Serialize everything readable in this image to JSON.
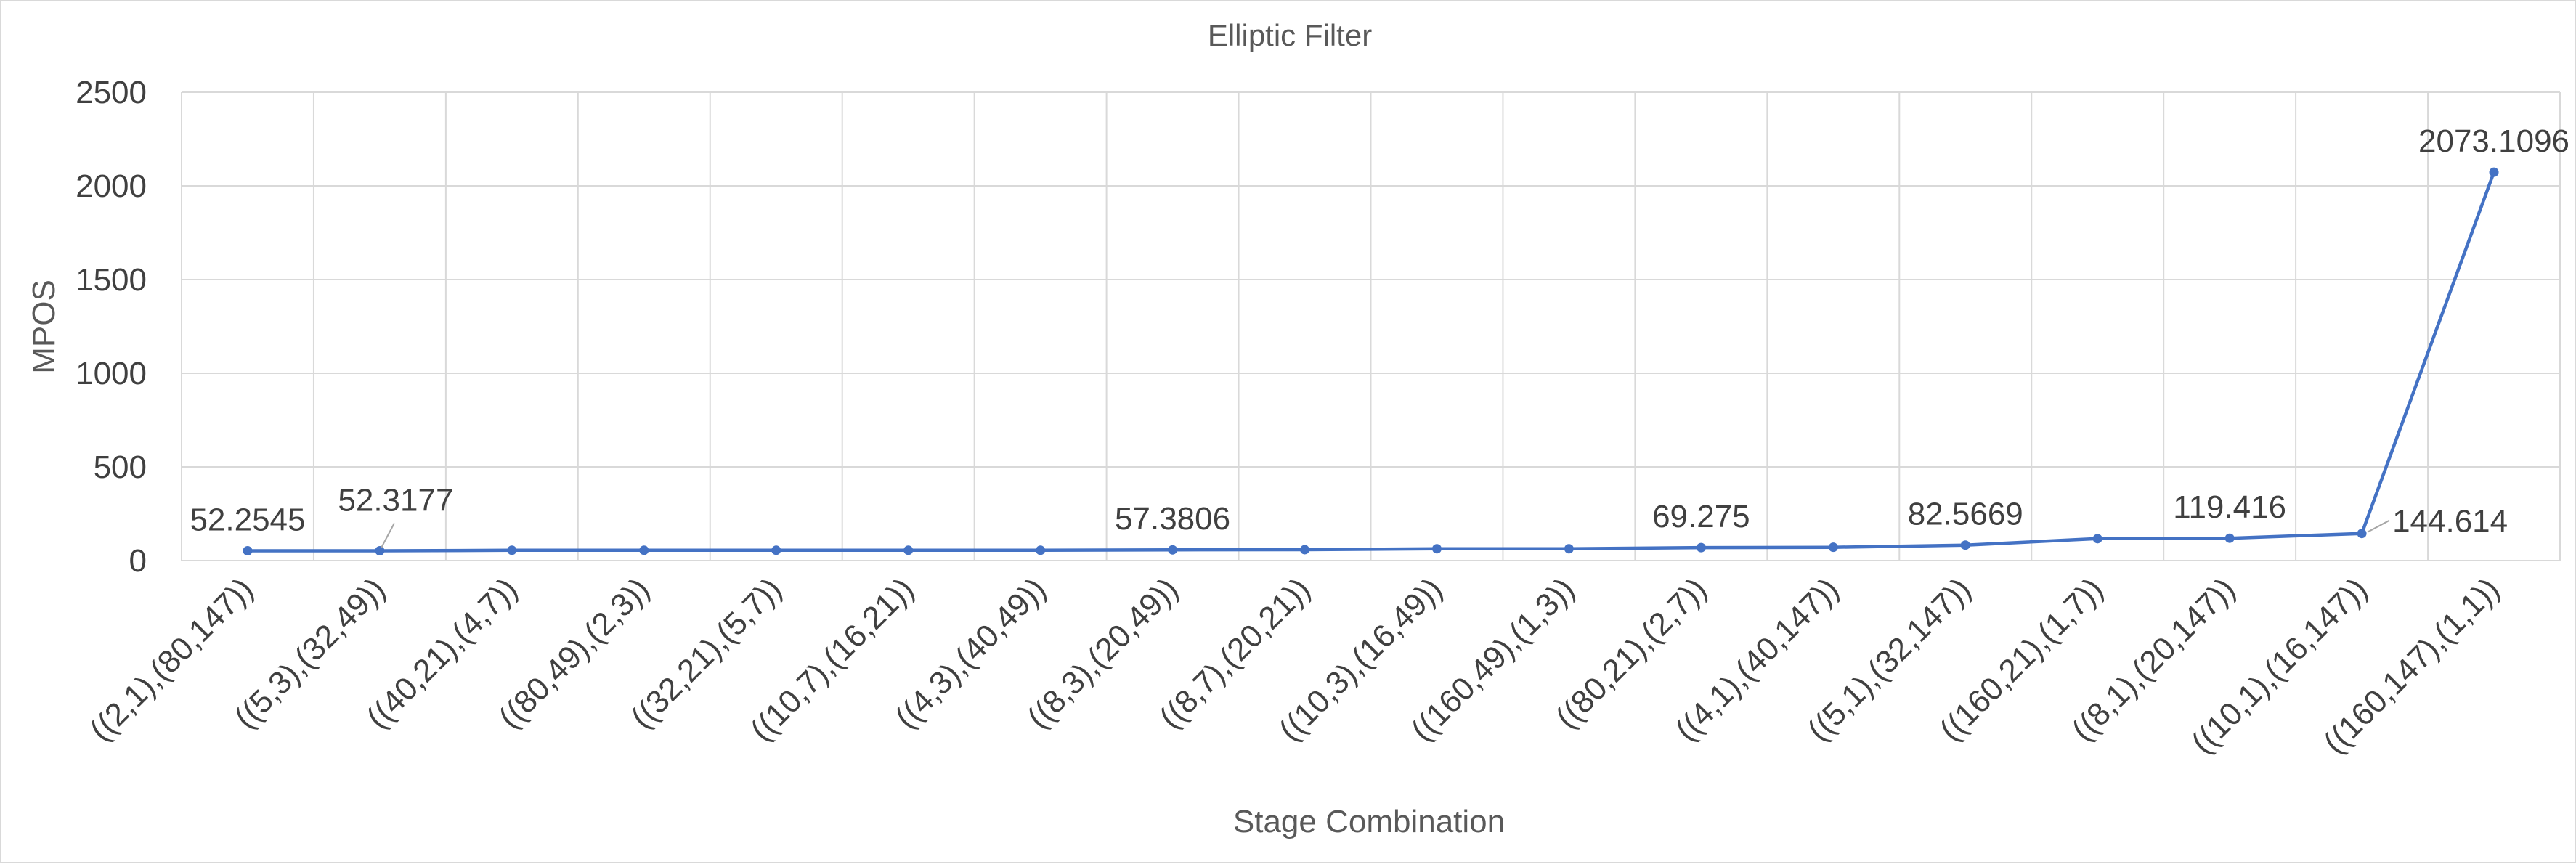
{
  "chart_data": {
    "type": "line",
    "title": "Elliptic Filter",
    "xlabel": "Stage Combination",
    "ylabel": "MPOS",
    "ylim": [
      0,
      2500
    ],
    "yticks": [
      0,
      500,
      1000,
      1500,
      2000,
      2500
    ],
    "grid": true,
    "legend": "none",
    "categories": [
      "((2,1),(80,147))",
      "((5,3),(32,49))",
      "((40,21),(4,7))",
      "((80,49),(2,3))",
      "((32,21),(5,7))",
      "((10,7),(16,21))",
      "((4,3),(40,49))",
      "((8,3),(20,49))",
      "((8,7),(20,21))",
      "((10,3),(16,49))",
      "((160,49),(1,3))",
      "((80,21),(2,7))",
      "((4,1),(40,147))",
      "((5,1),(32,147))",
      "((160,21),(1,7))",
      "((8,1),(20,147))",
      "((10,1),(16,147))",
      "((160,147),(1,1))"
    ],
    "series": [
      {
        "values": [
          52.2545,
          52.3177,
          55,
          55,
          55,
          55,
          55,
          57.3806,
          58,
          63,
          63,
          69.275,
          71,
          82.5669,
          117,
          119.416,
          144.614,
          2073.1096
        ]
      }
    ],
    "data_labels": [
      {
        "index": 0,
        "text": "52.2545"
      },
      {
        "index": 1,
        "text": "52.3177"
      },
      {
        "index": 7,
        "text": "57.3806"
      },
      {
        "index": 11,
        "text": "69.275"
      },
      {
        "index": 13,
        "text": "82.5669"
      },
      {
        "index": 15,
        "text": "119.416"
      },
      {
        "index": 16,
        "text": "144.614"
      },
      {
        "index": 17,
        "text": "2073.1096"
      }
    ],
    "colors": {
      "series": "#4472c4",
      "grid": "#d9d9d9",
      "text": "#404040",
      "border": "#d9d9d9"
    }
  }
}
